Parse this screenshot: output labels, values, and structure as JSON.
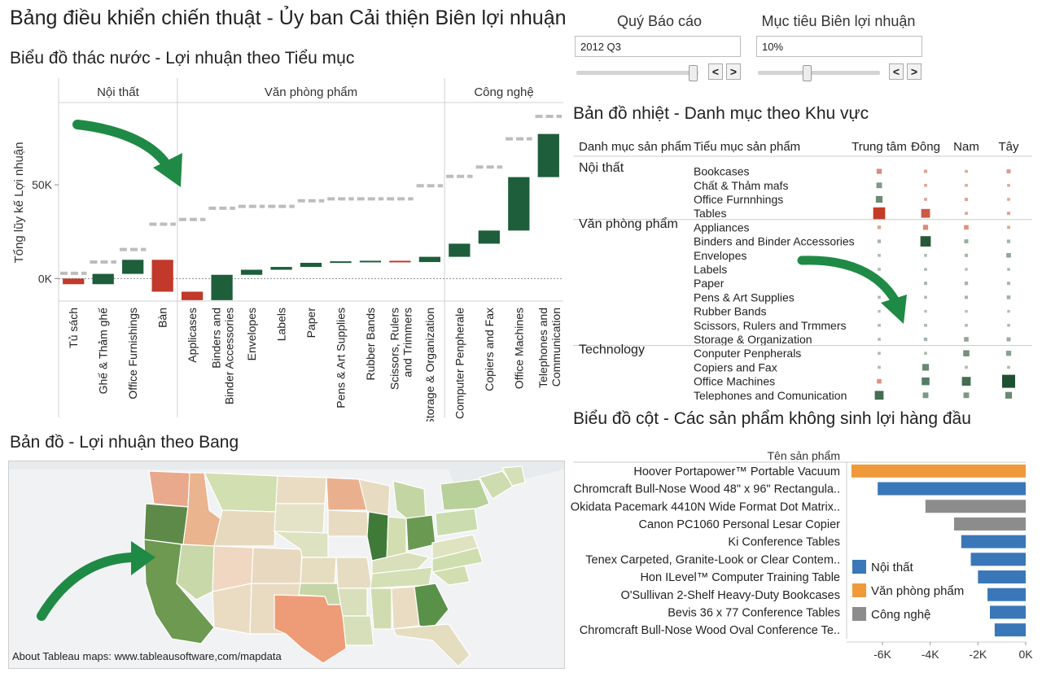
{
  "title": "Bảng điều khiển chiến thuật - Ủy ban Cải thiện Biên lợi nhuận",
  "params": {
    "quarter": {
      "label": "Quý Báo cáo",
      "value": "2012 Q3",
      "slider": 0.95
    },
    "margin": {
      "label": "Mục tiêu Biên lợi nhuận",
      "value": "10%",
      "slider": 0.4
    },
    "prev": "<",
    "next": ">"
  },
  "waterfall": {
    "title": "Biểu đồ thác nước - Lợi nhuận theo Tiểu mục",
    "ylabel": "Tổng lũy kế Lợi nhuận",
    "ytick_labels": [
      "0K",
      "50K"
    ],
    "groups": [
      "Nội thất",
      "Văn phòng phẩm",
      "Công nghệ"
    ]
  },
  "heatmap": {
    "title": "Bản đồ nhiệt - Danh mục theo Khu vực",
    "col_headers": [
      "Danh mục sản phẩm",
      "Tiểu mục sản phẩm"
    ],
    "regions": [
      "Trung tâm",
      "Đông",
      "Nam",
      "Tây"
    ],
    "categories": [
      {
        "name": "Nội thất",
        "subs": [
          "Bookcases",
          "Chất & Thảm mafs",
          "Office Furnnhings",
          "Tables"
        ]
      },
      {
        "name": "Văn phòng phẩm",
        "subs": [
          "Appliances",
          "Binders and Binder Accessories",
          "Envelopes",
          "Labels",
          "Paper",
          "Pens & Art Supplies",
          "Rubber Bands",
          "Scissors, Rulers and Trmmers",
          "Storage & Organization"
        ]
      },
      {
        "name": "Technology",
        "subs": [
          "Conputer Penpherals",
          "Copiers and Fax",
          "Office Machines",
          "Telephones and Comunication"
        ]
      }
    ],
    "values": [
      [
        -0.25,
        -0.08,
        -0.05,
        -0.15
      ],
      [
        0.3,
        -0.06,
        -0.05,
        -0.05
      ],
      [
        0.4,
        -0.06,
        -0.08,
        -0.05
      ],
      [
        -0.9,
        -0.6,
        -0.06,
        -0.08
      ],
      [
        -0.1,
        -0.25,
        -0.2,
        -0.06
      ],
      [
        0.1,
        0.75,
        0.15,
        0.1
      ],
      [
        0.05,
        0.05,
        0.08,
        0.2
      ],
      [
        0.05,
        0.05,
        0.03,
        0.05
      ],
      [
        0.05,
        0.08,
        0.1,
        0.08
      ],
      [
        0.05,
        0.05,
        0.08,
        0.12
      ],
      [
        0.03,
        0.03,
        0.03,
        0.03
      ],
      [
        0.05,
        0.06,
        0.05,
        0.05
      ],
      [
        0.05,
        0.1,
        0.2,
        0.15
      ],
      [
        0.05,
        0.05,
        0.35,
        0.25
      ],
      [
        0.05,
        0.4,
        0.05,
        0.05
      ],
      [
        -0.2,
        0.5,
        0.6,
        1.0
      ],
      [
        0.6,
        0.3,
        0.3,
        0.4
      ]
    ]
  },
  "map": {
    "title": "Bản đồ - Lợi nhuận theo Bang",
    "credit": "About Tableau maps: www.tableausoftware,com/mapdata"
  },
  "barchart": {
    "title": "Biểu đồ cột - Các sản phẩm không sinh lợi hàng đầu",
    "axis_title": "Tên sản phẩm",
    "legend": [
      {
        "name": "Nội thất",
        "color": "#3a77b8"
      },
      {
        "name": "Văn phòng phẩm",
        "color": "#ef9a3a"
      },
      {
        "name": "Công nghệ",
        "color": "#8c8c8c"
      }
    ]
  },
  "chart_data": [
    {
      "type": "bar",
      "subtype": "waterfall",
      "ylabel": "Tổng lũy kế Lợi nhuận",
      "yticks": [
        0,
        50000
      ],
      "ytick_labels": [
        "0K",
        "50K"
      ],
      "ylim": [
        -12000,
        93000
      ],
      "groups": [
        {
          "name": "Nội thất",
          "count": 4
        },
        {
          "name": "Văn phòng phẩm",
          "count": 9
        },
        {
          "name": "Công nghệ",
          "count": 4
        }
      ],
      "categories": [
        "Tủ sách",
        "Ghế & Thảm ghế",
        "Office Furnishings",
        "Bàn",
        "Applicases",
        "Binders and Binder Accessories",
        "Envelopes",
        "Labels",
        "Paper",
        "Pens & Art Supplies",
        "Rubber Bands",
        "Scissors, Rulers and Trimmers",
        "Storage & Organization",
        "Computer Penpherale",
        "Copiers and Fax",
        "Office Machines",
        "Telephones and Communication"
      ],
      "values": [
        -3000,
        5500,
        7500,
        -17000,
        -4500,
        13500,
        2700,
        1500,
        2200,
        800,
        300,
        -700,
        2800,
        7000,
        7000,
        28500,
        23000
      ],
      "targets": [
        2800,
        8800,
        15500,
        29000,
        31500,
        37500,
        38500,
        38500,
        41500,
        42500,
        42500,
        42500,
        49500,
        54500,
        59500,
        74500,
        86500
      ],
      "colors": {
        "positive": "#1e5e3a",
        "negative": "#c0392b",
        "target": "#bdbdbd"
      },
      "grid": false
    },
    {
      "type": "bar",
      "orientation": "horizontal",
      "axis_title": "Tên sản phẩm",
      "categories": [
        "Hoover Portapower™ Portable Vacuum",
        "Chromcraft Bull-Nose Wood 48\" x 96\" Rectangula..",
        "Okidata Pacemark 4410N Wide Format Dot Matrix..",
        "Canon PC1060 Personal Lesar Copier",
        "Ki Conference Tables",
        "Tenex Carpeted, Granite-Look or Clear Contem..",
        "Hon ILevel™ Computer Training Table",
        "O'Sullivan 2-Shelf Heavy-Duty Bookcases",
        "Bevis 36 x 77 Conference Tables",
        "Chromcraft Bull-Nose Wood Oval Conference Te.."
      ],
      "values": [
        -7300,
        -6200,
        -4200,
        -3000,
        -2700,
        -2300,
        -2000,
        -1600,
        -1500,
        -1300
      ],
      "series_of_item": [
        "Văn phòng phẩm",
        "Nội thất",
        "Công nghệ",
        "Công nghệ",
        "Nội thất",
        "Nội thất",
        "Nội thất",
        "Nội thất",
        "Nội thất",
        "Nội thất"
      ],
      "xticks": [
        -6000,
        -4000,
        -2000,
        0
      ],
      "xtick_labels": [
        "-6K",
        "-4K",
        "-2K",
        "0K"
      ],
      "xlim": [
        -7500,
        0
      ],
      "legend": [
        "Nội thất",
        "Văn phòng phẩm",
        "Công nghệ"
      ],
      "legend_position": "inside-left"
    }
  ]
}
